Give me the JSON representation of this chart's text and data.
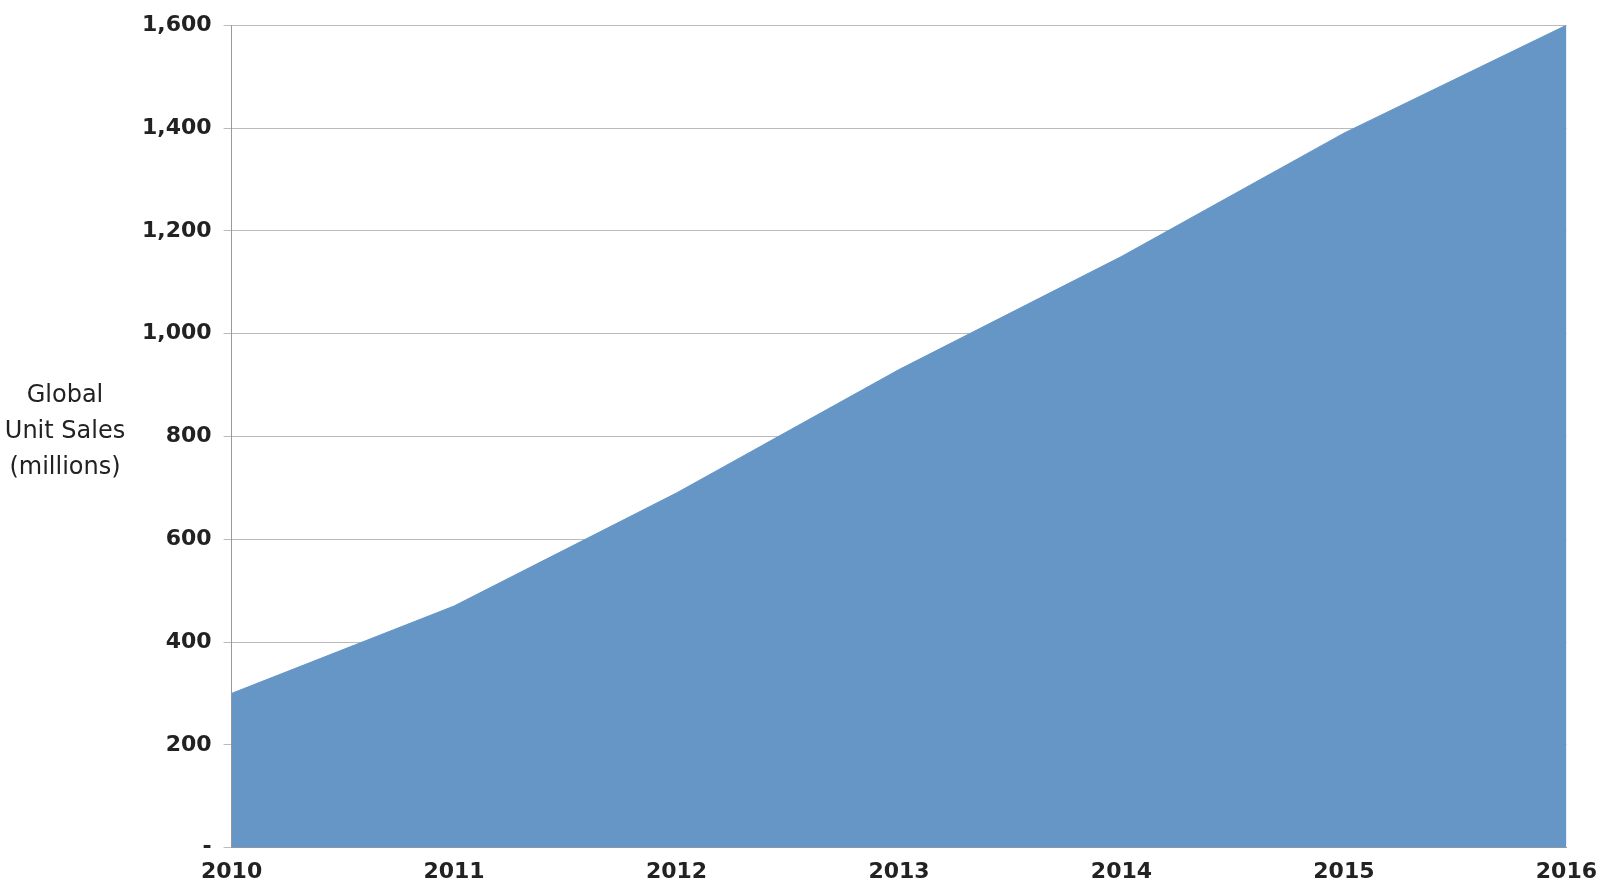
{
  "chart_data": {
    "type": "area",
    "ylabel": "Global Unit Sales (millions)",
    "categories": [
      "2010",
      "2011",
      "2012",
      "2013",
      "2014",
      "2015",
      "2016"
    ],
    "series": [
      {
        "color": "#6596c6",
        "values": [
          300,
          470,
          690,
          930,
          1150,
          1390,
          1600
        ]
      }
    ],
    "ylim": [
      0,
      1600
    ],
    "yticks": [
      {
        "value": 0,
        "label": "-"
      },
      200,
      400,
      600,
      800,
      {
        "value": 1000,
        "label": "1,000"
      },
      {
        "value": 1200,
        "label": "1,200"
      },
      {
        "value": 1400,
        "label": "1,400"
      },
      {
        "value": 1600,
        "label": "1,600"
      }
    ],
    "grid": "y",
    "legend": false
  }
}
